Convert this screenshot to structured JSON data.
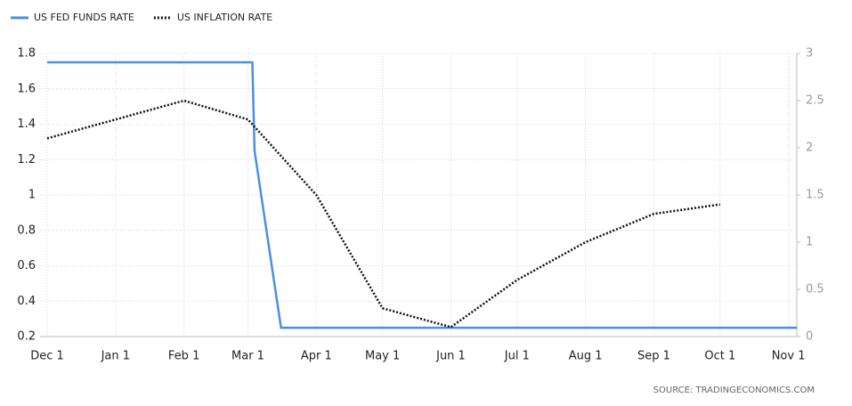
{
  "chart_data": {
    "type": "line",
    "source": "SOURCE:  TRADINGECONOMICS.COM",
    "xticks": [
      "Dec 1",
      "Jan 1",
      "Feb 1",
      "Mar 1",
      "Apr 1",
      "May 1",
      "Jun 1",
      "Jul 1",
      "Aug 1",
      "Sep 1",
      "Oct 1",
      "Nov 1"
    ],
    "series": [
      {
        "name": "US FED FUNDS RATE",
        "color": "#4a90e2",
        "axis": "y",
        "x": [
          "Dec 1",
          "Mar 3",
          "Mar 4",
          "Mar 16",
          "Nov 5"
        ],
        "values": [
          1.75,
          1.75,
          1.25,
          0.25,
          0.25
        ]
      },
      {
        "name": "US INFLATION RATE",
        "color": "#111111",
        "axis": "y2",
        "x": [
          "Dec 1",
          "Jan 1",
          "Feb 1",
          "Mar 1",
          "Apr 1",
          "May 1",
          "Jun 1",
          "Jul 1",
          "Aug 1",
          "Sep 1",
          "Oct 1"
        ],
        "values": [
          2.1,
          2.3,
          2.5,
          2.3,
          1.5,
          0.3,
          0.1,
          0.6,
          1.0,
          1.3,
          1.4
        ]
      }
    ],
    "ylim": [
      0.2,
      1.8
    ],
    "yticks": [
      0.2,
      0.4,
      0.6,
      0.8,
      1,
      1.2,
      1.4,
      1.6,
      1.8
    ],
    "y2lim": [
      0,
      3
    ],
    "y2ticks": [
      0,
      0.5,
      1,
      1.5,
      2,
      2.5,
      3
    ],
    "grid": true
  }
}
